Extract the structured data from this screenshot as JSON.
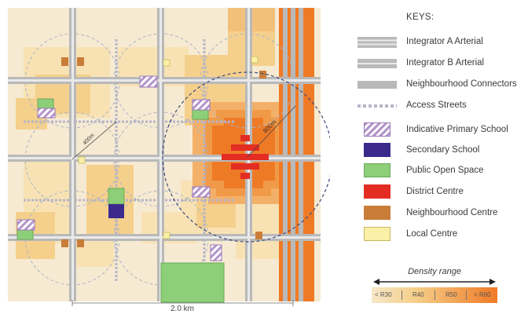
{
  "map": {
    "scale_label": "2.0 km",
    "radius_label_small": "400m",
    "radius_label_large": "800m"
  },
  "legend": {
    "title": "KEYS:",
    "items": [
      {
        "key": "integrator-a",
        "label": "Integrator A Arterial"
      },
      {
        "key": "integrator-b",
        "label": "Integrator B Arterial"
      },
      {
        "key": "neighbourhood-connectors",
        "label": "Neighbourhood Connectors"
      },
      {
        "key": "access-streets",
        "label": "Access Streets"
      },
      {
        "key": "primary-school",
        "label": "Indicative Primary School"
      },
      {
        "key": "secondary-school",
        "label": "Secondary School"
      },
      {
        "key": "public-open-space",
        "label": "Public Open Space"
      },
      {
        "key": "district-centre",
        "label": "District Centre"
      },
      {
        "key": "neighbourhood-centre",
        "label": "Neighbourhood Centre"
      },
      {
        "key": "local-centre",
        "label": "Local Centre"
      }
    ],
    "density": {
      "label": "Density range",
      "ticks": [
        "< R30",
        "R40",
        "R50",
        "> R60"
      ]
    }
  },
  "colors": {
    "background": "#f7ead2",
    "density_low": "#f7e7c8",
    "density_mid": "#f5d08c",
    "density_high": "#f3a55a",
    "density_peak": "#ef7a26",
    "arterial": "#b9b9b9",
    "district_centre": "#e32d22",
    "neighbourhood_centre": "#c97d38",
    "local_centre": "#fbf0a8",
    "public_open_space": "#8ccf78",
    "secondary_school": "#3b2a8c",
    "primary_school_hatch": "#b495cc"
  }
}
